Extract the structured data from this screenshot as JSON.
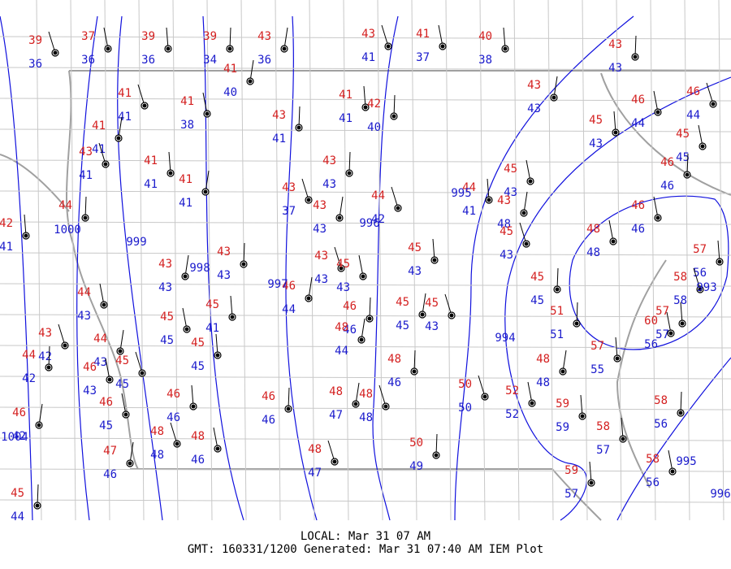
{
  "stations": [
    {
      "temperature": 39,
      "dewpoint": 36
    },
    {
      "temperature": 37,
      "dewpoint": 36
    },
    {
      "temperature": 39,
      "dewpoint": 36
    },
    {
      "temperature": 39,
      "dewpoint": 34
    },
    {
      "temperature": 43,
      "dewpoint": 36
    },
    {
      "temperature": 43,
      "dewpoint": 41
    },
    {
      "temperature": 41,
      "dewpoint": 37
    },
    {
      "temperature": 40,
      "dewpoint": 38
    },
    {
      "temperature": 43,
      "dewpoint": 43
    },
    {
      "temperature": 41,
      "dewpoint": 40
    },
    {
      "temperature": 41,
      "dewpoint": 41
    },
    {
      "temperature": 41,
      "dewpoint": 38
    },
    {
      "temperature": 41,
      "dewpoint": 41
    },
    {
      "temperature": 42,
      "dewpoint": 40
    },
    {
      "temperature": 43,
      "dewpoint": 43
    },
    {
      "temperature": 46,
      "dewpoint": 44
    },
    {
      "temperature": 46,
      "dewpoint": 44
    },
    {
      "temperature": 45,
      "dewpoint": 43
    },
    {
      "temperature": 43,
      "dewpoint": 41
    },
    {
      "temperature": 41,
      "dewpoint": 41
    },
    {
      "temperature": 43,
      "dewpoint": 41
    },
    {
      "temperature": 45,
      "dewpoint": 45
    },
    {
      "temperature": 41,
      "dewpoint": 41
    },
    {
      "temperature": 43,
      "dewpoint": 43
    },
    {
      "temperature": 41,
      "dewpoint": 41
    },
    {
      "temperature": 43,
      "dewpoint": 37
    },
    {
      "temperature": 45,
      "dewpoint": 43
    },
    {
      "temperature": 44,
      "dewpoint": 41
    },
    {
      "temperature": 46,
      "dewpoint": 46
    },
    {
      "temperature": 43,
      "dewpoint": 43
    },
    {
      "temperature": 44,
      "dewpoint": 42
    },
    {
      "temperature": 46,
      "dewpoint": 46
    },
    {
      "temperature": 42,
      "dewpoint": 41
    },
    {
      "temperature": 44,
      "dewpoint": null
    },
    {
      "temperature": 43,
      "dewpoint": 48
    },
    {
      "temperature": 45,
      "dewpoint": 43
    },
    {
      "temperature": 48,
      "dewpoint": 48
    },
    {
      "temperature": 45,
      "dewpoint": 43
    },
    {
      "temperature": 43,
      "dewpoint": 43
    },
    {
      "temperature": 43,
      "dewpoint": 43
    },
    {
      "temperature": 43,
      "dewpoint": 43
    },
    {
      "temperature": 45,
      "dewpoint": 43
    },
    {
      "temperature": 57,
      "dewpoint": 56
    },
    {
      "temperature": 45,
      "dewpoint": 45
    },
    {
      "temperature": 46,
      "dewpoint": 44
    },
    {
      "temperature": 58,
      "dewpoint": 58
    },
    {
      "temperature": 44,
      "dewpoint": 43
    },
    {
      "temperature": 45,
      "dewpoint": 41
    },
    {
      "temperature": 46,
      "dewpoint": 46
    },
    {
      "temperature": 45,
      "dewpoint": 45
    },
    {
      "temperature": 45,
      "dewpoint": 43
    },
    {
      "temperature": 45,
      "dewpoint": 45
    },
    {
      "temperature": 57,
      "dewpoint": 57
    },
    {
      "temperature": 51,
      "dewpoint": 51
    },
    {
      "temperature": 48,
      "dewpoint": 44
    },
    {
      "temperature": 43,
      "dewpoint": 42
    },
    {
      "temperature": 60,
      "dewpoint": 56
    },
    {
      "temperature": 45,
      "dewpoint": 45
    },
    {
      "temperature": 44,
      "dewpoint": 42
    },
    {
      "temperature": 44,
      "dewpoint": 43
    },
    {
      "temperature": 45,
      "dewpoint": 45
    },
    {
      "temperature": 46,
      "dewpoint": 43
    },
    {
      "temperature": 57,
      "dewpoint": 55
    },
    {
      "temperature": 48,
      "dewpoint": 46
    },
    {
      "temperature": 48,
      "dewpoint": 48
    },
    {
      "temperature": 50,
      "dewpoint": 50
    },
    {
      "temperature": 52,
      "dewpoint": 52
    },
    {
      "temperature": 46,
      "dewpoint": 46
    },
    {
      "temperature": 46,
      "dewpoint": 46
    },
    {
      "temperature": 48,
      "dewpoint": 47
    },
    {
      "temperature": 48,
      "dewpoint": 48
    },
    {
      "temperature": 46,
      "dewpoint": 45
    },
    {
      "temperature": 59,
      "dewpoint": 59
    },
    {
      "temperature": 58,
      "dewpoint": 56
    },
    {
      "temperature": 46,
      "dewpoint": 42
    },
    {
      "temperature": 48,
      "dewpoint": 48
    },
    {
      "temperature": 48,
      "dewpoint": 46
    },
    {
      "temperature": 58,
      "dewpoint": 57
    },
    {
      "temperature": 50,
      "dewpoint": 49
    },
    {
      "temperature": 47,
      "dewpoint": 46
    },
    {
      "temperature": 48,
      "dewpoint": 47
    },
    {
      "temperature": 58,
      "dewpoint": 56
    },
    {
      "temperature": 59,
      "dewpoint": 57
    },
    {
      "temperature": 45,
      "dewpoint": 44
    }
  ],
  "isobar_labels": [
    999,
    998,
    997,
    996,
    995,
    994,
    993,
    995,
    996,
    1000,
    1004
  ],
  "footer": {
    "local": "LOCAL: Mar 31 07 AM",
    "gmt": "GMT: 160331/1200 Generated: Mar 31 07:40 AM IEM Plot"
  }
}
